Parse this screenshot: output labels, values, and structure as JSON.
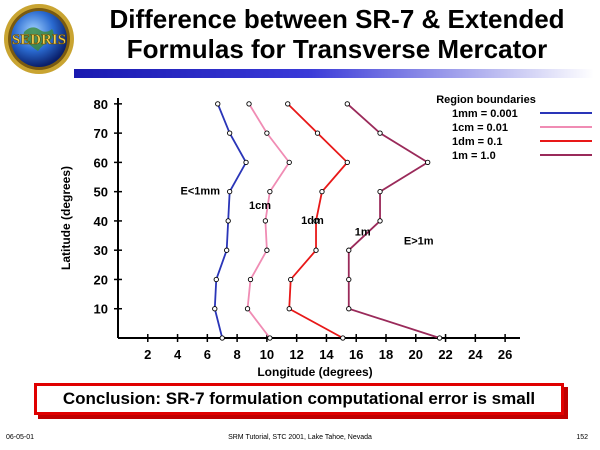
{
  "slide": {
    "title_line1": "Difference between SR-7 & Extended",
    "title_line2": "Formulas for Transverse Mercator",
    "logo_text": "SEDRIS",
    "conclusion": "Conclusion:  SR-7 formulation computational error is small",
    "footer_left": "06-05-01",
    "footer_center": "SRM Tutorial, STC 2001, Lake Tahoe, Nevada",
    "footer_right": "152"
  },
  "chart_data": {
    "type": "line",
    "xlabel": "Longitude (degrees)",
    "ylabel": "Latitude (degrees)",
    "xlim": [
      0,
      27
    ],
    "ylim": [
      0,
      82
    ],
    "xticks": [
      2,
      4,
      6,
      8,
      10,
      12,
      14,
      16,
      18,
      20,
      22,
      24,
      26
    ],
    "yticks": [
      10,
      20,
      30,
      40,
      50,
      60,
      70,
      80
    ],
    "legend": {
      "title": "Region boundaries",
      "position": "top-right"
    },
    "series": [
      {
        "name": "1mm = 0.001",
        "color": "#2a35b8",
        "marker": "#000000",
        "points": [
          [
            7.0,
            0
          ],
          [
            6.5,
            10
          ],
          [
            6.6,
            20
          ],
          [
            7.3,
            30
          ],
          [
            7.4,
            40
          ],
          [
            7.5,
            50
          ],
          [
            8.6,
            60
          ],
          [
            7.5,
            70
          ],
          [
            6.7,
            80
          ]
        ]
      },
      {
        "name": "1cm = 0.01",
        "color": "#f08cb4",
        "marker": "#000000",
        "points": [
          [
            10.2,
            0
          ],
          [
            8.7,
            10
          ],
          [
            8.9,
            20
          ],
          [
            10.0,
            30
          ],
          [
            9.9,
            40
          ],
          [
            10.2,
            50
          ],
          [
            11.5,
            60
          ],
          [
            10.0,
            70
          ],
          [
            8.8,
            80
          ]
        ]
      },
      {
        "name": "1dm = 0.1",
        "color": "#e81818",
        "marker": "#000000",
        "points": [
          [
            15.1,
            0
          ],
          [
            11.5,
            10
          ],
          [
            11.6,
            20
          ],
          [
            13.3,
            30
          ],
          [
            13.3,
            40
          ],
          [
            13.7,
            50
          ],
          [
            15.4,
            60
          ],
          [
            13.4,
            70
          ],
          [
            11.4,
            80
          ]
        ]
      },
      {
        "name": "1m = 1.0",
        "color": "#9a2a5a",
        "marker": "#000000",
        "points": [
          [
            21.6,
            0
          ],
          [
            15.5,
            10
          ],
          [
            15.5,
            20
          ],
          [
            15.5,
            30
          ],
          [
            17.6,
            40
          ],
          [
            17.6,
            50
          ],
          [
            20.8,
            60
          ],
          [
            17.6,
            70
          ],
          [
            15.4,
            80
          ]
        ]
      }
    ],
    "annotations": [
      {
        "text": "E<1mm",
        "x": 4.2,
        "y": 49
      },
      {
        "text": "1cm",
        "x": 8.8,
        "y": 44
      },
      {
        "text": "1dm",
        "x": 12.3,
        "y": 39
      },
      {
        "text": "1m",
        "x": 15.9,
        "y": 35
      },
      {
        "text": "E>1m",
        "x": 19.2,
        "y": 32
      }
    ]
  }
}
